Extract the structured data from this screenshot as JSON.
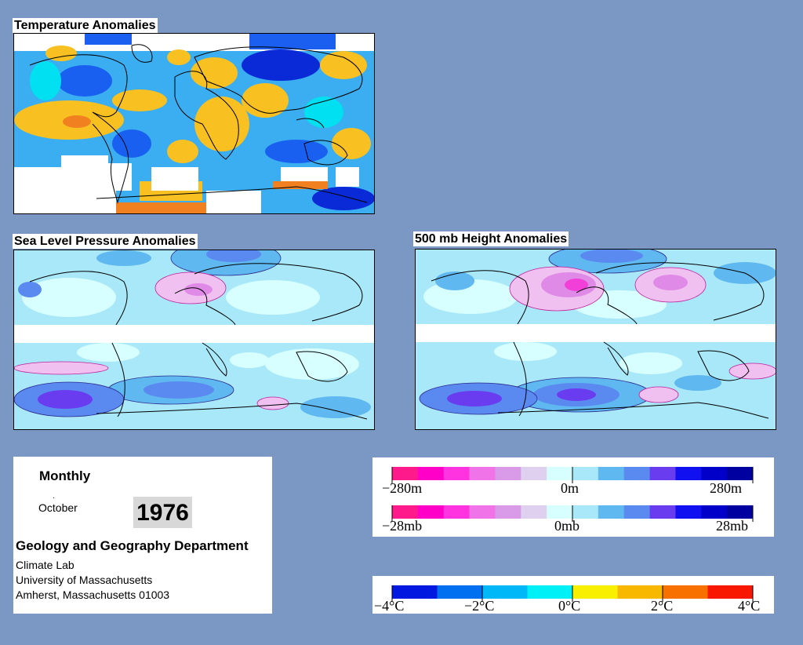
{
  "panels": {
    "temperature": {
      "title": "Temperature Anomalies"
    },
    "slp": {
      "title": "Sea Level Pressure Anomalies"
    },
    "height": {
      "title": "500 mb Height Anomalies"
    }
  },
  "info": {
    "heading": "Monthly",
    "month": "October",
    "year": "1976",
    "department": "Geology and Geography Department",
    "lines": [
      "Climate Lab",
      "University of Massachusetts",
      "Amherst, Massachusetts 01003"
    ]
  },
  "legends": {
    "height": {
      "min": "−280m",
      "mid": "0m",
      "max": "280m"
    },
    "pressure": {
      "min": "−28mb",
      "mid": "0mb",
      "max": "28mb"
    },
    "temperature": {
      "ticks": [
        "−4°C",
        "−2°C",
        "0°C",
        "2°C",
        "4°C"
      ]
    }
  },
  "colors": {
    "background": "#7b97c4",
    "pressure_scale": [
      "#ff1a8c",
      "#ff00c8",
      "#ff33e0",
      "#f073e8",
      "#d99ae8",
      "#e0d0f0",
      "#d8ffff",
      "#a8e8f8",
      "#60b8f0",
      "#5a8af0",
      "#6a3cf0",
      "#1010f0",
      "#0000c8",
      "#0000a0"
    ],
    "temperature_scale": [
      "#0018e0",
      "#0070f0",
      "#00b8f8",
      "#00f0f8",
      "#f8f000",
      "#f8b800",
      "#f87000",
      "#f81800"
    ]
  }
}
